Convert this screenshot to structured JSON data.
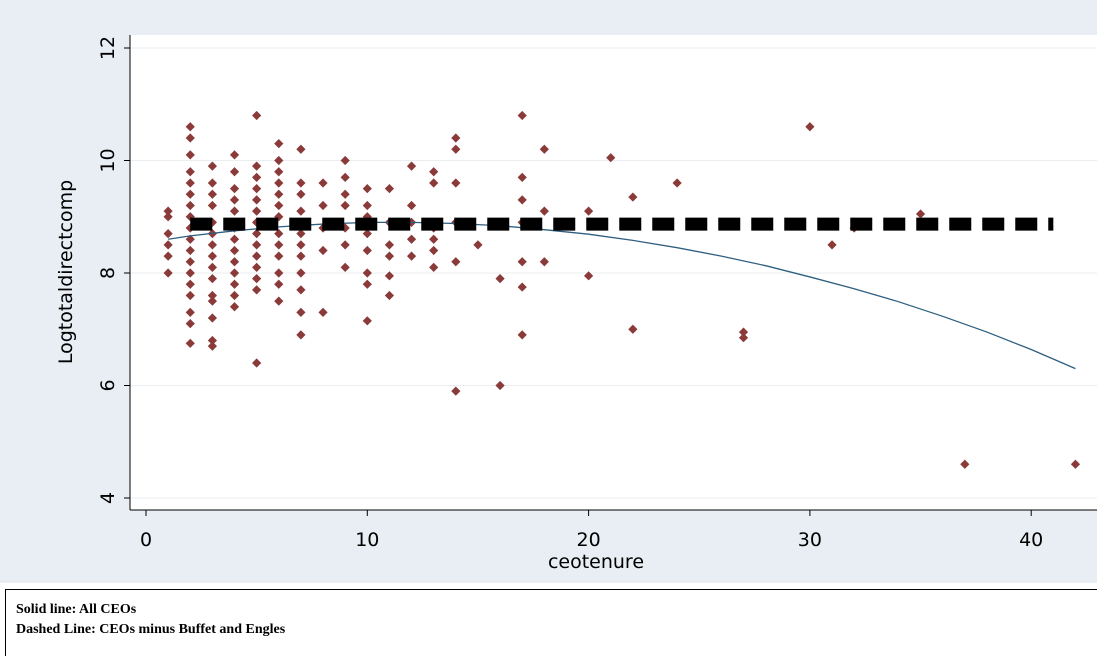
{
  "chart_data": {
    "type": "scatter",
    "xlabel": "ceotenure",
    "ylabel": "Logtotaldirectcomp",
    "xlim": [
      0,
      42
    ],
    "ylim": [
      4,
      12
    ],
    "xticks": [
      "0",
      "10",
      "20",
      "30",
      "40"
    ],
    "yticks": [
      "4",
      "6",
      "8",
      "10",
      "12"
    ],
    "grid": "horizontal",
    "colors": {
      "points": "#8b3a3a",
      "solid_line": "#2f5f80",
      "dashed_line": "#000000",
      "plot_background": "#ffffff",
      "outer_background": "#e8eef3"
    },
    "series": [
      {
        "kind": "scatter",
        "values": [
          [
            1,
            9.1
          ],
          [
            1,
            9.0
          ],
          [
            1,
            8.7
          ],
          [
            1,
            8.5
          ],
          [
            1,
            8.3
          ],
          [
            1,
            8.0
          ],
          [
            2,
            10.6
          ],
          [
            2,
            10.4
          ],
          [
            2,
            10.1
          ],
          [
            2,
            9.8
          ],
          [
            2,
            9.6
          ],
          [
            2,
            9.4
          ],
          [
            2,
            9.2
          ],
          [
            2,
            9.0
          ],
          [
            2,
            8.8
          ],
          [
            2,
            8.6
          ],
          [
            2,
            8.4
          ],
          [
            2,
            8.2
          ],
          [
            2,
            8.0
          ],
          [
            2,
            7.8
          ],
          [
            2,
            7.6
          ],
          [
            2,
            7.3
          ],
          [
            2,
            7.1
          ],
          [
            2,
            6.75
          ],
          [
            3,
            9.9
          ],
          [
            3,
            9.6
          ],
          [
            3,
            9.4
          ],
          [
            3,
            9.2
          ],
          [
            3,
            8.9
          ],
          [
            3,
            8.7
          ],
          [
            3,
            8.5
          ],
          [
            3,
            8.3
          ],
          [
            3,
            8.1
          ],
          [
            3,
            7.9
          ],
          [
            3,
            7.6
          ],
          [
            3,
            7.5
          ],
          [
            3,
            7.2
          ],
          [
            3,
            6.8
          ],
          [
            3,
            6.7
          ],
          [
            4,
            10.1
          ],
          [
            4,
            9.8
          ],
          [
            4,
            9.5
          ],
          [
            4,
            9.3
          ],
          [
            4,
            9.1
          ],
          [
            4,
            8.8
          ],
          [
            4,
            8.6
          ],
          [
            4,
            8.4
          ],
          [
            4,
            8.2
          ],
          [
            4,
            8.0
          ],
          [
            4,
            7.8
          ],
          [
            4,
            7.6
          ],
          [
            4,
            7.4
          ],
          [
            5,
            10.8
          ],
          [
            5,
            9.9
          ],
          [
            5,
            9.7
          ],
          [
            5,
            9.5
          ],
          [
            5,
            9.3
          ],
          [
            5,
            9.1
          ],
          [
            5,
            8.9
          ],
          [
            5,
            8.7
          ],
          [
            5,
            8.5
          ],
          [
            5,
            8.3
          ],
          [
            5,
            8.1
          ],
          [
            5,
            7.9
          ],
          [
            5,
            7.7
          ],
          [
            5,
            6.4
          ],
          [
            6,
            10.3
          ],
          [
            6,
            10.0
          ],
          [
            6,
            9.8
          ],
          [
            6,
            9.6
          ],
          [
            6,
            9.4
          ],
          [
            6,
            9.2
          ],
          [
            6,
            9.0
          ],
          [
            6,
            8.7
          ],
          [
            6,
            8.5
          ],
          [
            6,
            8.3
          ],
          [
            6,
            8.0
          ],
          [
            6,
            7.8
          ],
          [
            6,
            7.5
          ],
          [
            7,
            10.2
          ],
          [
            7,
            9.6
          ],
          [
            7,
            9.4
          ],
          [
            7,
            9.1
          ],
          [
            7,
            8.9
          ],
          [
            7,
            8.7
          ],
          [
            7,
            8.5
          ],
          [
            7,
            8.3
          ],
          [
            7,
            8.0
          ],
          [
            7,
            7.7
          ],
          [
            7,
            7.3
          ],
          [
            7,
            6.9
          ],
          [
            8,
            9.6
          ],
          [
            8,
            9.2
          ],
          [
            8,
            8.8
          ],
          [
            8,
            8.4
          ],
          [
            8,
            7.3
          ],
          [
            9,
            10.0
          ],
          [
            9,
            9.7
          ],
          [
            9,
            9.4
          ],
          [
            9,
            9.2
          ],
          [
            9,
            8.8
          ],
          [
            9,
            8.5
          ],
          [
            9,
            8.1
          ],
          [
            10,
            9.5
          ],
          [
            10,
            9.2
          ],
          [
            10,
            9.0
          ],
          [
            10,
            8.7
          ],
          [
            10,
            8.4
          ],
          [
            10,
            8.0
          ],
          [
            10,
            7.8
          ],
          [
            10,
            7.15
          ],
          [
            11,
            9.5
          ],
          [
            11,
            8.9
          ],
          [
            11,
            8.5
          ],
          [
            11,
            8.3
          ],
          [
            11,
            7.95
          ],
          [
            11,
            7.6
          ],
          [
            12,
            9.9
          ],
          [
            12,
            9.2
          ],
          [
            12,
            8.9
          ],
          [
            12,
            8.6
          ],
          [
            12,
            8.3
          ],
          [
            13,
            9.8
          ],
          [
            13,
            9.6
          ],
          [
            13,
            8.8
          ],
          [
            13,
            8.6
          ],
          [
            13,
            8.4
          ],
          [
            13,
            8.1
          ],
          [
            14,
            10.4
          ],
          [
            14,
            10.2
          ],
          [
            14,
            9.6
          ],
          [
            14,
            8.9
          ],
          [
            14,
            8.2
          ],
          [
            14,
            5.9
          ],
          [
            15,
            8.5
          ],
          [
            16,
            7.9
          ],
          [
            16,
            6.0
          ],
          [
            17,
            10.8
          ],
          [
            17,
            9.7
          ],
          [
            17,
            9.3
          ],
          [
            17,
            8.9
          ],
          [
            17,
            8.2
          ],
          [
            17,
            7.75
          ],
          [
            17,
            6.9
          ],
          [
            18,
            10.2
          ],
          [
            18,
            9.1
          ],
          [
            18,
            8.2
          ],
          [
            20,
            9.1
          ],
          [
            20,
            7.95
          ],
          [
            21,
            10.05
          ],
          [
            22,
            9.35
          ],
          [
            22,
            7.0
          ],
          [
            24,
            9.6
          ],
          [
            27,
            6.95
          ],
          [
            27,
            6.85
          ],
          [
            30,
            10.6
          ],
          [
            31,
            8.5
          ],
          [
            32,
            8.8
          ],
          [
            35,
            9.05
          ],
          [
            37,
            4.6
          ],
          [
            42,
            4.6
          ]
        ]
      },
      {
        "kind": "line",
        "style": "solid",
        "x": [
          1,
          2,
          4,
          6,
          8,
          10,
          12,
          14,
          16,
          18,
          20,
          22,
          24,
          26,
          28,
          30,
          32,
          34,
          36,
          38,
          40,
          42
        ],
        "y": [
          8.6,
          8.66,
          8.75,
          8.82,
          8.87,
          8.9,
          8.9,
          8.88,
          8.84,
          8.77,
          8.69,
          8.58,
          8.45,
          8.3,
          8.13,
          7.93,
          7.72,
          7.49,
          7.23,
          6.95,
          6.64,
          6.3
        ]
      },
      {
        "kind": "line",
        "style": "dashed",
        "x": [
          2,
          41
        ],
        "y": [
          8.87,
          8.87
        ]
      }
    ]
  },
  "note": {
    "line1": "Solid line: All CEOs",
    "line2": "Dashed Line: CEOs minus Buffet and Engles"
  }
}
